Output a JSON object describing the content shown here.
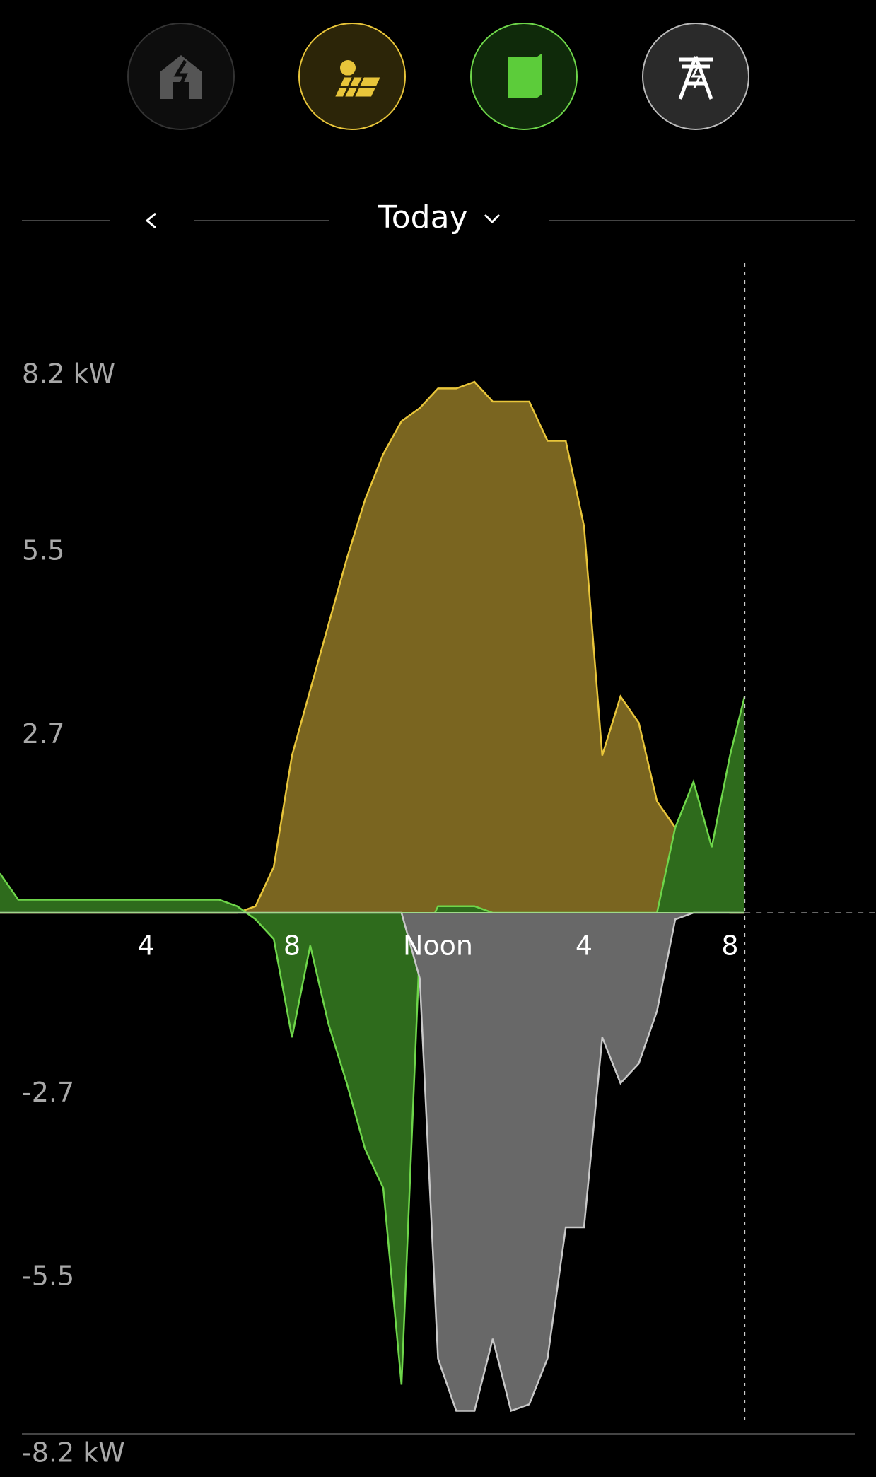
{
  "nav": {
    "period": "Today"
  },
  "chart_data": {
    "type": "area",
    "x": [
      0,
      0.5,
      1,
      1.5,
      2,
      2.5,
      3,
      3.5,
      4,
      4.5,
      5,
      5.5,
      6,
      6.5,
      7,
      7.5,
      8,
      8.5,
      9,
      9.5,
      10,
      10.5,
      11,
      11.5,
      12,
      12.5,
      13,
      13.5,
      14,
      14.5,
      15,
      15.5,
      16,
      16.5,
      17,
      17.5,
      18,
      18.5,
      19,
      19.5,
      20,
      20.4
    ],
    "series": [
      {
        "color": "#e8c53a",
        "values": [
          0,
          0,
          0,
          0,
          0,
          0,
          0,
          0,
          0,
          0,
          0,
          0,
          0,
          0,
          0.1,
          0.7,
          2.4,
          3.4,
          4.4,
          5.4,
          6.3,
          7.0,
          7.5,
          7.7,
          8.0,
          8.0,
          8.1,
          7.8,
          7.8,
          7.8,
          7.2,
          7.2,
          5.9,
          2.4,
          3.3,
          2.9,
          1.7,
          1.3,
          0.5,
          0.05,
          0,
          0
        ]
      },
      {
        "color": "#6ed64a",
        "values": [
          0.6,
          0.2,
          0.2,
          0.2,
          0.2,
          0.2,
          0.2,
          0.2,
          0.2,
          0.2,
          0.2,
          0.2,
          0.2,
          0.1,
          -0.1,
          -0.4,
          -1.9,
          -0.5,
          -1.7,
          -2.6,
          -3.6,
          -4.2,
          -7.2,
          -0.5,
          0.1,
          0.1,
          0.1,
          0,
          0,
          0,
          0,
          0,
          0,
          0,
          0,
          0,
          0,
          1.3,
          2.0,
          1.0,
          2.4,
          3.3
        ]
      },
      {
        "color": "#c8c8c8",
        "values": [
          0,
          0,
          0,
          0,
          0,
          0,
          0,
          0,
          0,
          0,
          0,
          0,
          0,
          0,
          0,
          0,
          0,
          0,
          0,
          0,
          0,
          0,
          0,
          -1.0,
          -6.8,
          -7.6,
          -7.6,
          -6.5,
          -7.6,
          -7.5,
          -6.8,
          -4.8,
          -4.8,
          -1.9,
          -2.6,
          -2.3,
          -1.5,
          -0.1,
          0,
          0,
          0,
          0
        ]
      }
    ],
    "xlim": [
      0,
      24
    ],
    "xticks": [
      4,
      8,
      {
        "value": 12,
        "label": "Noon"
      },
      {
        "value": 16,
        "label": "4"
      },
      {
        "value": 20,
        "label": "8"
      }
    ],
    "ylim": [
      -8.2,
      8.2
    ],
    "yticks": [
      {
        "value": 8.2,
        "label": "8.2 kW"
      },
      5.5,
      2.7,
      -2.7,
      -5.5,
      {
        "value": -8.2,
        "label": "-8.2 kW"
      }
    ],
    "grid": false
  }
}
